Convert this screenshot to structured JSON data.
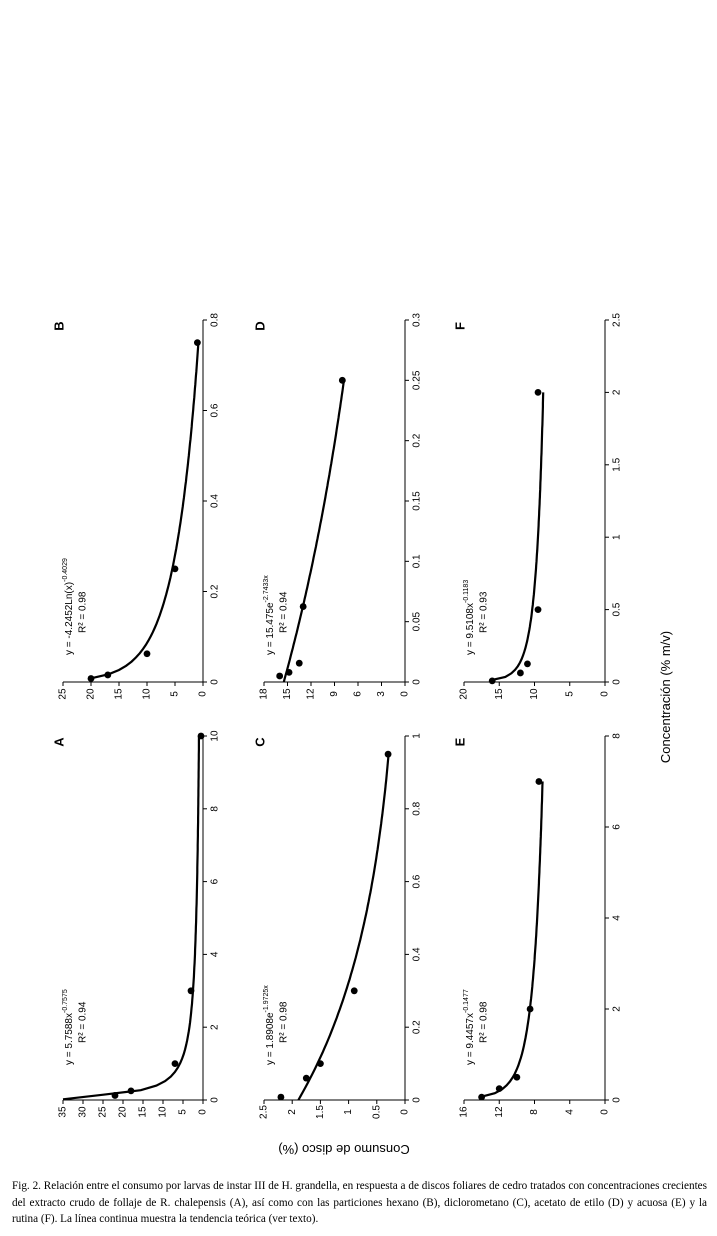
{
  "figure": {
    "y_axis_label": "Consumo de disco (%)",
    "x_axis_label": "Concentración (% m/v)"
  },
  "caption": {
    "text": "Fig. 2. Relación entre el consumo por larvas de instar III de H. grandella, en respuesta a de discos foliares de cedro tratados con concentraciones crecientes del extracto crudo de follaje de R. chalepensis (A), así como con las particiones hexano (B), diclorometano (C), acetato de etilo (D) y acuosa (E) y la rutina (F). La línea continua muestra la tendencia teórica (ver texto)."
  },
  "chart_data": [
    {
      "panel": "A",
      "type": "scatter",
      "equation": "y = 5.7588x",
      "equation_exponent": "-0.7575",
      "r2": "R² = 0.94",
      "xlim": [
        0,
        10
      ],
      "x_ticks": [
        "0",
        "2",
        "4",
        "6",
        "8",
        "10"
      ],
      "ylim": [
        0,
        35
      ],
      "y_ticks": [
        "0",
        "5",
        "10",
        "15",
        "20",
        "25",
        "30",
        "35"
      ],
      "points": [
        {
          "x": 0.125,
          "y": 22
        },
        {
          "x": 0.25,
          "y": 18
        },
        {
          "x": 1,
          "y": 7
        },
        {
          "x": 3,
          "y": 3
        },
        {
          "x": 10,
          "y": 0.5
        }
      ],
      "trend": {
        "model": "power",
        "a": 5.7588,
        "b": -0.7575,
        "x_start": 0.02
      }
    },
    {
      "panel": "B",
      "type": "scatter",
      "equation": "y = -4.2452Ln(x)",
      "equation_exponent": "-0.4029",
      "r2": "R² = 0.98",
      "xlim": [
        0,
        0.8
      ],
      "x_ticks": [
        "0",
        "0.2",
        "0.4",
        "0.6",
        "0.8"
      ],
      "ylim": [
        0,
        25
      ],
      "y_ticks": [
        "0",
        "5",
        "10",
        "15",
        "20",
        "25"
      ],
      "points": [
        {
          "x": 0.0078,
          "y": 20
        },
        {
          "x": 0.0156,
          "y": 17
        },
        {
          "x": 0.0625,
          "y": 10
        },
        {
          "x": 0.25,
          "y": 5
        },
        {
          "x": 0.75,
          "y": 1
        }
      ],
      "trend": {
        "model": "log",
        "a": -4.2452,
        "b": -0.4029,
        "x_start": 0.008
      }
    },
    {
      "panel": "C",
      "type": "scatter",
      "equation": "y = 1.8908e",
      "equation_exponent": "-1.9725x",
      "r2": "R² = 0.98",
      "xlim": [
        0,
        1
      ],
      "x_ticks": [
        "0",
        "0.2",
        "0.4",
        "0.6",
        "0.8",
        "1"
      ],
      "ylim": [
        0,
        2.5
      ],
      "y_ticks": [
        "0",
        "0.5",
        "1",
        "1.5",
        "2",
        "2.5"
      ],
      "points": [
        {
          "x": 0.008,
          "y": 2.2
        },
        {
          "x": 0.06,
          "y": 1.75
        },
        {
          "x": 0.1,
          "y": 1.5
        },
        {
          "x": 0.3,
          "y": 0.9
        },
        {
          "x": 0.95,
          "y": 0.3
        }
      ],
      "trend": {
        "model": "exp",
        "a": 1.8908,
        "b": -1.9725,
        "x_start": 0
      }
    },
    {
      "panel": "D",
      "type": "scatter",
      "equation": "y = 15.475e",
      "equation_exponent": "-2.7433x",
      "r2": "R² = 0.94",
      "xlim": [
        0,
        0.3
      ],
      "x_ticks": [
        "0",
        "0.05",
        "0.1",
        "0.15",
        "0.2",
        "0.25",
        "0.3"
      ],
      "ylim": [
        0,
        18
      ],
      "y_ticks": [
        "0",
        "3",
        "6",
        "9",
        "12",
        "15",
        "18"
      ],
      "points": [
        {
          "x": 0.005,
          "y": 16
        },
        {
          "x": 0.008,
          "y": 14.8
        },
        {
          "x": 0.0156,
          "y": 13.5
        },
        {
          "x": 0.0625,
          "y": 13
        },
        {
          "x": 0.25,
          "y": 8
        }
      ],
      "trend": {
        "model": "exp",
        "a": 15.475,
        "b": -2.7433,
        "x_start": 0
      }
    },
    {
      "panel": "E",
      "type": "scatter",
      "equation": "y = 9.4457x",
      "equation_exponent": "-0.1477",
      "r2": "R² = 0.98",
      "xlim": [
        0,
        8
      ],
      "x_ticks": [
        "0",
        "2",
        "4",
        "6",
        "8"
      ],
      "ylim": [
        0,
        16
      ],
      "y_ticks": [
        "0",
        "4",
        "8",
        "12",
        "16"
      ],
      "points": [
        {
          "x": 0.0625,
          "y": 14
        },
        {
          "x": 0.25,
          "y": 12
        },
        {
          "x": 0.5,
          "y": 10
        },
        {
          "x": 2,
          "y": 8.5
        },
        {
          "x": 7,
          "y": 7.5
        }
      ],
      "trend": {
        "model": "power",
        "a": 9.4457,
        "b": -0.1477,
        "x_start": 0.0625
      }
    },
    {
      "panel": "F",
      "type": "scatter",
      "equation": "y = 9.5108x",
      "equation_exponent": "-0.1183",
      "r2": "R² = 0.93",
      "xlim": [
        0,
        2.5
      ],
      "x_ticks": [
        "0",
        "0.5",
        "1",
        "1.5",
        "2",
        "2.5"
      ],
      "ylim": [
        0,
        20
      ],
      "y_ticks": [
        "0",
        "5",
        "10",
        "15",
        "20"
      ],
      "points": [
        {
          "x": 0.0078,
          "y": 16
        },
        {
          "x": 0.0625,
          "y": 12
        },
        {
          "x": 0.125,
          "y": 11
        },
        {
          "x": 0.5,
          "y": 9.5
        },
        {
          "x": 2,
          "y": 9.5
        }
      ],
      "trend": {
        "model": "power",
        "a": 9.5108,
        "b": -0.1183,
        "x_start": 0.01
      }
    }
  ]
}
